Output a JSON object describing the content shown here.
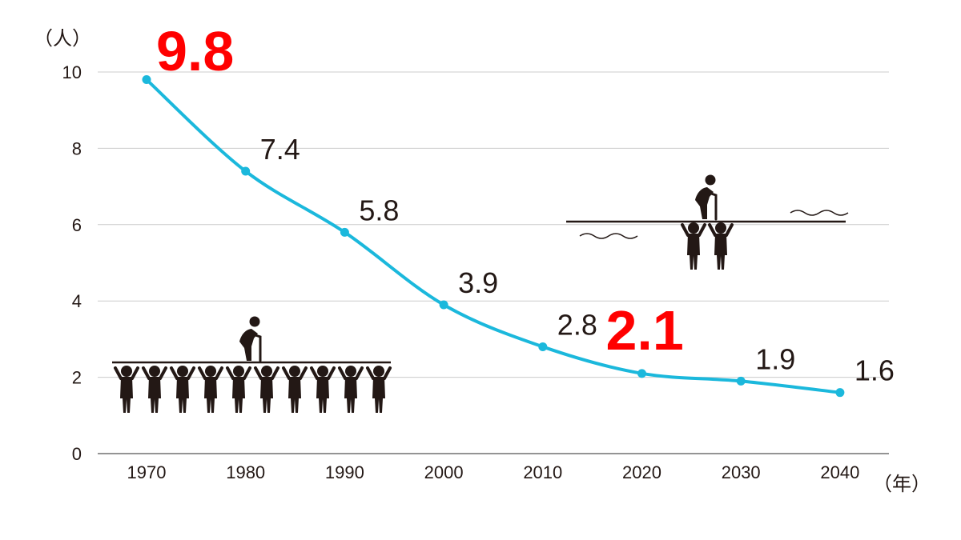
{
  "chart_data": {
    "type": "line",
    "x": [
      "1970",
      "1980",
      "1990",
      "2000",
      "2010",
      "2020",
      "2030",
      "2040"
    ],
    "values": [
      9.8,
      7.4,
      5.8,
      3.9,
      2.8,
      2.1,
      1.9,
      1.6
    ],
    "data_labels": [
      "9.8",
      "7.4",
      "5.8",
      "3.9",
      "2.8",
      "2.1",
      "1.9",
      "1.6"
    ],
    "highlighted": [
      "1970",
      "2020"
    ],
    "ylim": [
      0,
      10
    ],
    "yticks": [
      0,
      2,
      4,
      6,
      8,
      10
    ],
    "grid": true,
    "ylabel": "（人）",
    "xlabel": "（年）",
    "line_color": "#1bb8dc",
    "highlight_color": "#ff0000",
    "text_color": "#231815",
    "grid_color": "#cccccc",
    "illustrations": [
      "elderly-supported-by-ten-workers",
      "elderly-supported-by-two-workers"
    ]
  }
}
